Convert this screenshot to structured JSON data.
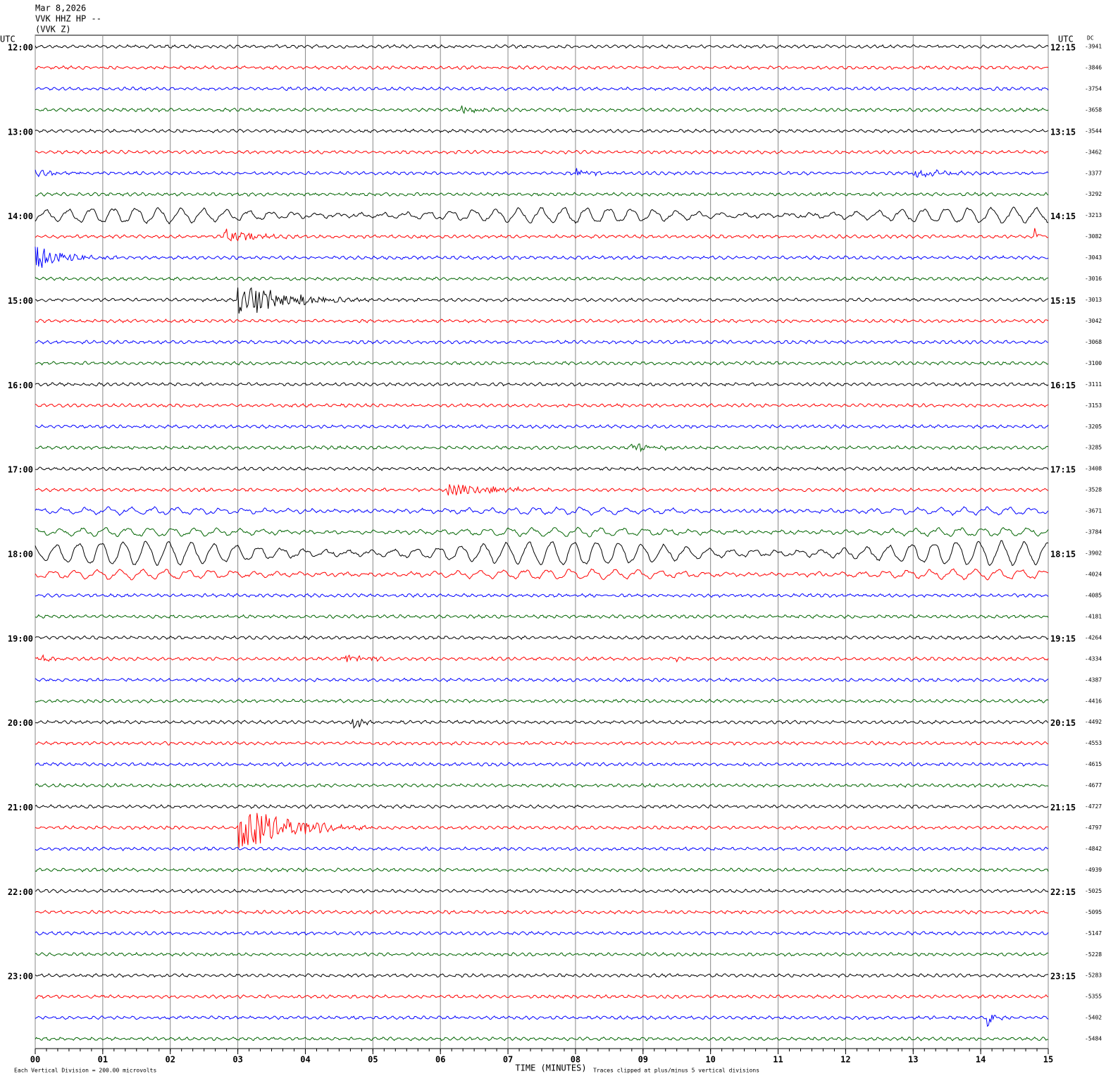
{
  "chart_data": {
    "type": "helicorder",
    "title_lines": [
      "Mar 8,2026",
      "VVK HHZ HP --",
      "(VVK Z)"
    ],
    "left_axis_label": "UTC",
    "right_axis_label": "UTC",
    "dc_label": "DC",
    "left_labels": [
      "12:00",
      "13:00",
      "14:00",
      "15:00",
      "16:00",
      "17:00",
      "18:00",
      "19:00",
      "20:00",
      "21:00",
      "22:00",
      "23:00"
    ],
    "right_labels": [
      "12:15",
      "13:15",
      "14:15",
      "15:15",
      "16:15",
      "17:15",
      "18:15",
      "19:15",
      "20:15",
      "21:15",
      "22:15",
      "23:15"
    ],
    "dc_values": [
      -3941,
      -3846,
      -3754,
      -3658,
      -3544,
      -3462,
      -3377,
      -3292,
      -3213,
      -3082,
      -3043,
      -3016,
      -3013,
      -3042,
      -3068,
      -3100,
      -3111,
      -3153,
      -3205,
      -3285,
      -3408,
      -3528,
      -3671,
      -3784,
      -3902,
      -4024,
      -4085,
      -4181,
      -4264,
      -4334,
      -4387,
      -4416,
      -4492,
      -4553,
      -4615,
      -4677,
      -4727,
      -4797,
      -4842,
      -4939,
      -5025,
      -5095,
      -5147,
      -5228,
      -5283,
      -5355,
      -5402,
      -5484
    ],
    "trace_colors": [
      "#000000",
      "#ff0000",
      "#0000ff",
      "#006400"
    ],
    "xlim": [
      0,
      15
    ],
    "xticks": [
      {
        "value": 0,
        "label": "00"
      },
      {
        "value": 1,
        "label": "01"
      },
      {
        "value": 2,
        "label": "02"
      },
      {
        "value": 3,
        "label": "03"
      },
      {
        "value": 4,
        "label": "04"
      },
      {
        "value": 5,
        "label": "05"
      },
      {
        "value": 6,
        "label": "06"
      },
      {
        "value": 7,
        "label": "07"
      },
      {
        "value": 8,
        "label": "08"
      },
      {
        "value": 9,
        "label": "09"
      },
      10,
      11,
      12,
      13,
      14,
      15
    ],
    "x_label": "TIME (MINUTES)",
    "scale_note": "Each Vertical Division =  200.00 microvolts",
    "clip_note": "Traces clipped at plus/minus 5 vertical divisions",
    "grid": true
  }
}
